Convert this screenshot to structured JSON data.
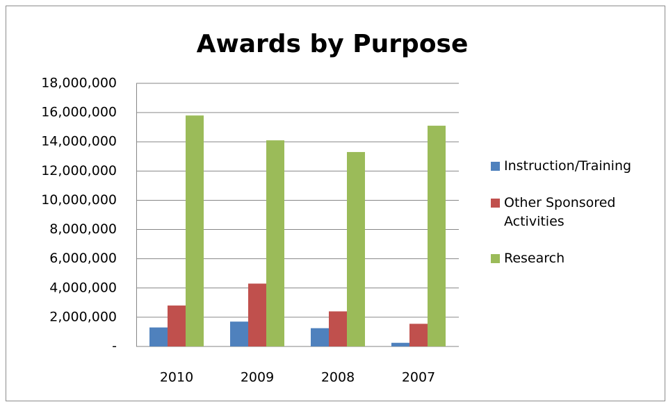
{
  "chart_data": {
    "type": "bar",
    "title": "Awards by Purpose",
    "categories": [
      "2010",
      "2009",
      "2008",
      "2007"
    ],
    "series": [
      {
        "name": "Instruction/Training",
        "color": "#4f81bd",
        "values": [
          1300000,
          1700000,
          1250000,
          250000
        ]
      },
      {
        "name": "Other Sponsored Activities",
        "color": "#c0504d",
        "values": [
          2800000,
          4300000,
          2400000,
          1550000
        ]
      },
      {
        "name": "Research",
        "color": "#9bbb59",
        "values": [
          15800000,
          14100000,
          13300000,
          15100000
        ]
      }
    ],
    "ylim": [
      0,
      18000000
    ],
    "yticks": [
      {
        "value": 0,
        "label": "-"
      },
      {
        "value": 2000000,
        "label": "2,000,000"
      },
      {
        "value": 4000000,
        "label": "4,000,000"
      },
      {
        "value": 6000000,
        "label": "6,000,000"
      },
      {
        "value": 8000000,
        "label": "8,000,000"
      },
      {
        "value": 10000000,
        "label": "10,000,000"
      },
      {
        "value": 12000000,
        "label": "12,000,000"
      },
      {
        "value": 14000000,
        "label": "14,000,000"
      },
      {
        "value": 16000000,
        "label": "16,000,000"
      },
      {
        "value": 18000000,
        "label": "18,000,000"
      }
    ],
    "grid": true,
    "legend": "right"
  }
}
